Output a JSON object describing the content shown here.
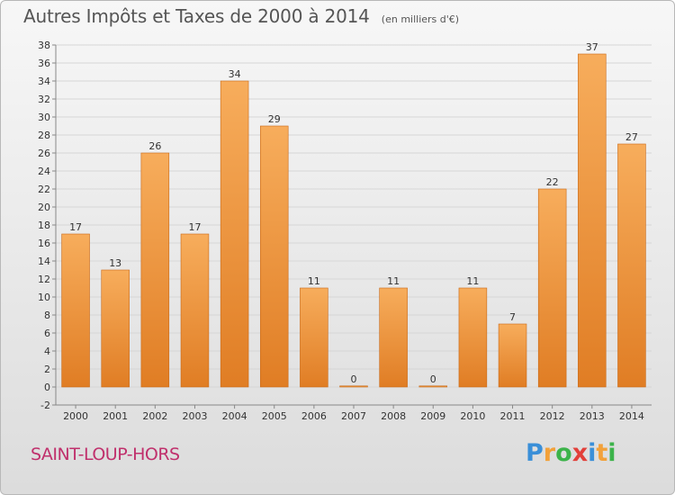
{
  "title": "Autres Impôts et Taxes de 2000 à 2014",
  "subtitle": "(en milliers d'€)",
  "city": "SAINT-LOUP-HORS",
  "logo": {
    "letters": [
      "P",
      "r",
      "o",
      "x",
      "i",
      "t",
      "i"
    ],
    "colors": [
      "#3a8fd8",
      "#f2a13a",
      "#3cb34a",
      "#e2403a",
      "#3a8fd8",
      "#f2a13a",
      "#3cb34a"
    ]
  },
  "colors": {
    "bar_light": "#f7ad5c",
    "bar_dark": "#e07d24",
    "bar_edge": "#c96a18",
    "grid": "#d6d6d6",
    "axis": "#888888"
  },
  "chart_data": {
    "type": "bar",
    "categories": [
      "2000",
      "2001",
      "2002",
      "2003",
      "2004",
      "2005",
      "2006",
      "2007",
      "2008",
      "2009",
      "2010",
      "2011",
      "2012",
      "2013",
      "2014"
    ],
    "values": [
      17,
      13,
      26,
      17,
      34,
      29,
      11,
      0,
      11,
      0,
      11,
      7,
      22,
      37,
      27
    ],
    "labels": [
      "17",
      "13",
      "26",
      "17",
      "34",
      "29",
      "11",
      "0",
      "11",
      "0",
      "11",
      "7",
      "22",
      "37",
      "27"
    ],
    "title": "Autres Impôts et Taxes de 2000 à 2014",
    "xlabel": "",
    "ylabel": "",
    "ylim": [
      -2,
      38
    ],
    "yticks": [
      -2,
      0,
      2,
      4,
      6,
      8,
      10,
      12,
      14,
      16,
      18,
      20,
      22,
      24,
      26,
      28,
      30,
      32,
      34,
      36,
      38
    ],
    "ytick_labels": [
      "-2",
      "0",
      "2",
      "4",
      "6",
      "8",
      "10",
      "12",
      "14",
      "16",
      "18",
      "20",
      "22",
      "24",
      "26",
      "28",
      "30",
      "32",
      "34",
      "36",
      "38"
    ],
    "grid": true,
    "legend": "none"
  }
}
